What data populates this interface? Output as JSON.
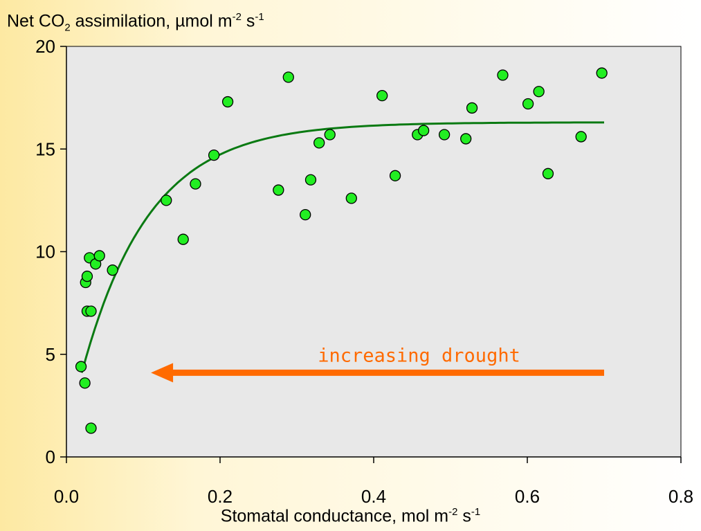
{
  "chart_data": {
    "type": "scatter",
    "ylabel": {
      "main": "Net CO",
      "sub": "2",
      "rest": " assimilation, µmol m",
      "sup1": "-2",
      "mid": " s",
      "sup2": "-1"
    },
    "xlabel": {
      "main": "Stomatal conductance, mol m",
      "sup1": "-2",
      "mid": " s",
      "sup2": "-1"
    },
    "xlim": [
      0.0,
      0.8
    ],
    "ylim": [
      0,
      20
    ],
    "xticks": [
      "0.0",
      "0.2",
      "0.4",
      "0.6",
      "0.8"
    ],
    "yticks": [
      "0",
      "5",
      "10",
      "15",
      "20"
    ],
    "grid": false,
    "colors": {
      "plot_bg": "#e8e8e8",
      "points": "#22ee22",
      "fit": "#0a7a12",
      "arrow": "#ff6a00"
    },
    "points": [
      [
        0.019,
        4.4
      ],
      [
        0.024,
        3.6
      ],
      [
        0.032,
        1.4
      ],
      [
        0.025,
        8.5
      ],
      [
        0.027,
        8.8
      ],
      [
        0.027,
        7.1
      ],
      [
        0.032,
        7.1
      ],
      [
        0.03,
        9.7
      ],
      [
        0.038,
        9.4
      ],
      [
        0.043,
        9.8
      ],
      [
        0.06,
        9.1
      ],
      [
        0.13,
        12.5
      ],
      [
        0.152,
        10.6
      ],
      [
        0.168,
        13.3
      ],
      [
        0.192,
        14.7
      ],
      [
        0.21,
        17.3
      ],
      [
        0.276,
        13.0
      ],
      [
        0.289,
        18.5
      ],
      [
        0.311,
        11.8
      ],
      [
        0.318,
        13.5
      ],
      [
        0.329,
        15.3
      ],
      [
        0.343,
        15.7
      ],
      [
        0.371,
        12.6
      ],
      [
        0.411,
        17.6
      ],
      [
        0.428,
        13.7
      ],
      [
        0.457,
        15.7
      ],
      [
        0.465,
        15.9
      ],
      [
        0.492,
        15.7
      ],
      [
        0.52,
        15.5
      ],
      [
        0.528,
        17.0
      ],
      [
        0.568,
        18.6
      ],
      [
        0.601,
        17.2
      ],
      [
        0.615,
        17.8
      ],
      [
        0.627,
        13.8
      ],
      [
        0.67,
        15.6
      ],
      [
        0.697,
        18.7
      ]
    ],
    "fit": {
      "type": "exponential-rise",
      "x_range": [
        0.02,
        0.7
      ],
      "ymax": 16.3,
      "a": 12.2,
      "k": 11.4
    },
    "annotation": {
      "text": "increasing drought",
      "arrow_from": [
        0.7,
        4.1
      ],
      "arrow_to": [
        0.11,
        4.1
      ]
    }
  }
}
